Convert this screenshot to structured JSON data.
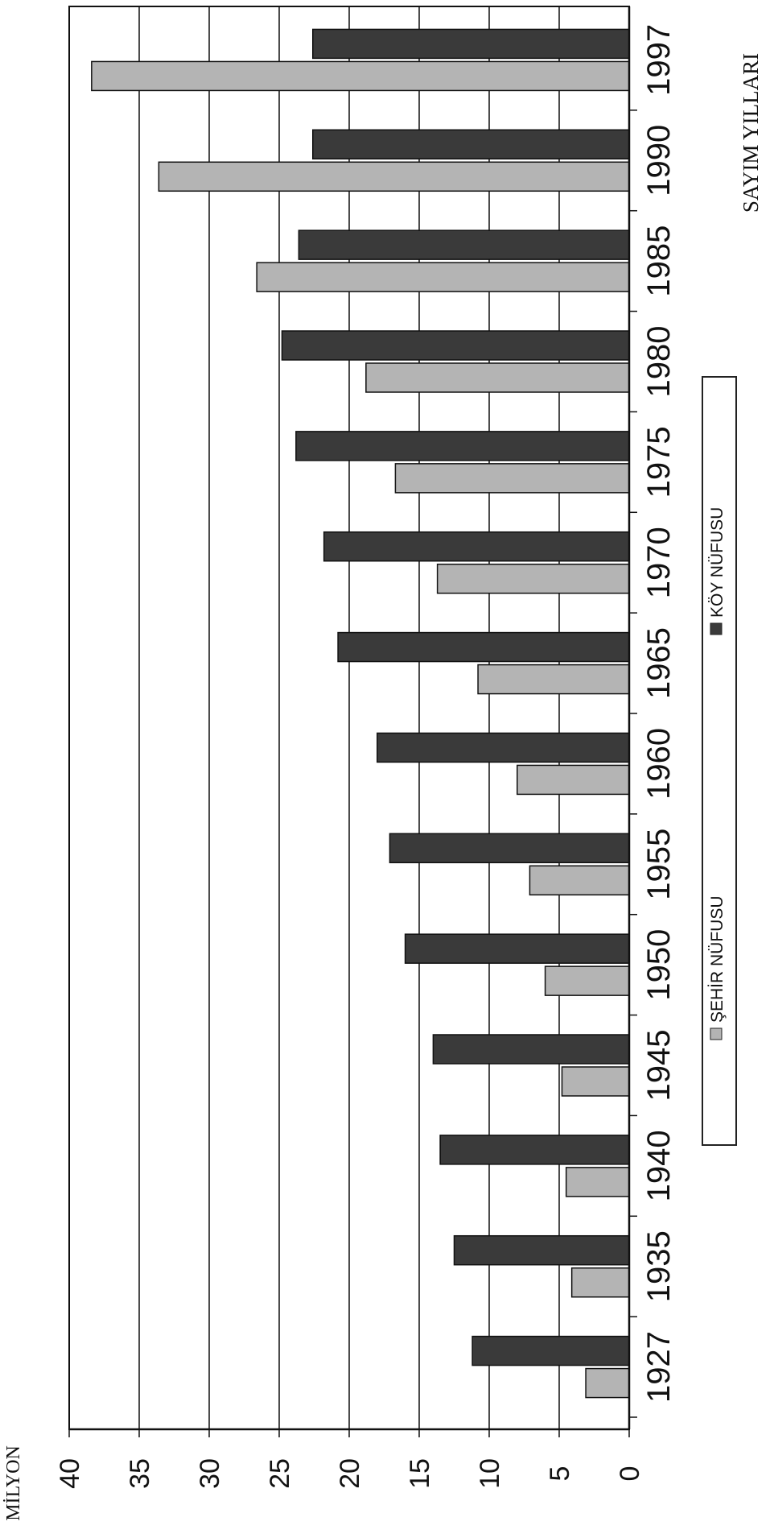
{
  "chart_data": {
    "type": "bar",
    "orientation": "horizontal",
    "rotated": "90deg",
    "ylabel": "MİLYON",
    "xlabel": "SAYIM YILLARI",
    "categories": [
      "1927",
      "1935",
      "1940",
      "1945",
      "1950",
      "1955",
      "1960",
      "1965",
      "1970",
      "1975",
      "1980",
      "1985",
      "1990",
      "1997"
    ],
    "series": [
      {
        "name": "ŞEHİR NÜFUSU",
        "color": "#b4b4b4",
        "values": [
          3.1,
          4.1,
          4.5,
          4.8,
          6.0,
          7.1,
          8.0,
          10.8,
          13.7,
          16.7,
          18.8,
          26.6,
          33.6,
          38.4
        ]
      },
      {
        "name": "KÖY NÜFUSU",
        "color": "#3a3a3a",
        "values": [
          11.2,
          12.5,
          13.5,
          14.0,
          16.0,
          17.1,
          18.0,
          20.8,
          21.8,
          23.8,
          24.8,
          23.6,
          22.6,
          22.6
        ]
      }
    ],
    "ticks": [
      0,
      5,
      10,
      15,
      20,
      25,
      30,
      35,
      40
    ],
    "ylim": [
      0,
      40
    ],
    "grid": true,
    "legend": "bottom-center"
  }
}
